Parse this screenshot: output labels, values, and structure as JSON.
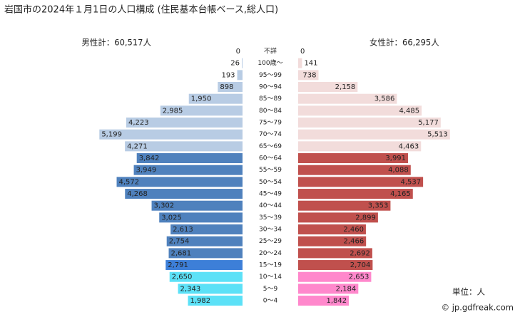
{
  "chart_data": {
    "type": "pyramid",
    "title": "岩国市の2024年１月1日の人口構成 (住民基本台帳ベース,総人口)",
    "unit": "単位：人",
    "source": "© jp.gdfreak.com",
    "categories": [
      "不詳",
      "100歳～",
      "95～99",
      "90～94",
      "85～89",
      "80～84",
      "75～79",
      "70～74",
      "65～69",
      "60～64",
      "55～59",
      "50～54",
      "45～49",
      "40～44",
      "35～39",
      "30～34",
      "25～29",
      "20～24",
      "15～19",
      "10～14",
      "5～9",
      "0～4"
    ],
    "series": [
      {
        "name": "男性計：60,517人",
        "side": "left",
        "values": [
          0,
          26,
          193,
          898,
          1950,
          2985,
          4223,
          5199,
          4271,
          3842,
          3949,
          4572,
          4268,
          3302,
          3025,
          2613,
          2754,
          2681,
          2791,
          2650,
          2343,
          1982
        ],
        "value_labels": [
          "0",
          "26",
          "193",
          "898",
          "1,950",
          "2,985",
          "4,223",
          "5,199",
          "4,271",
          "3,842",
          "3,949",
          "4,572",
          "4,268",
          "3,302",
          "3,025",
          "2,613",
          "2,754",
          "2,681",
          "2,791",
          "2,650",
          "2,343",
          "1,982"
        ],
        "colors": [
          "#b8cce4",
          "#b8cce4",
          "#b8cce4",
          "#b8cce4",
          "#b8cce4",
          "#b8cce4",
          "#b8cce4",
          "#b8cce4",
          "#b8cce4",
          "#4f81bd",
          "#4f81bd",
          "#4f81bd",
          "#4f81bd",
          "#4f81bd",
          "#4f81bd",
          "#4f81bd",
          "#4f81bd",
          "#4f81bd",
          "#3d7fd8",
          "#5ce1f7",
          "#5ce1f7",
          "#5ce1f7"
        ]
      },
      {
        "name": "女性計：66,295人",
        "side": "right",
        "values": [
          0,
          141,
          738,
          2158,
          3586,
          4485,
          5177,
          5513,
          4463,
          3991,
          4088,
          4537,
          4165,
          3353,
          2899,
          2460,
          2466,
          2692,
          2704,
          2653,
          2184,
          1842
        ],
        "value_labels": [
          "0",
          "141",
          "738",
          "2,158",
          "3,586",
          "4,485",
          "5,177",
          "5,513",
          "4,463",
          "3,991",
          "4,088",
          "4,537",
          "4,165",
          "3,353",
          "2,899",
          "2,460",
          "2,466",
          "2,692",
          "2,704",
          "2,653",
          "2,184",
          "1,842"
        ],
        "colors": [
          "#f2dcdb",
          "#f2dcdb",
          "#f2dcdb",
          "#f2dcdb",
          "#f2dcdb",
          "#f2dcdb",
          "#f2dcdb",
          "#f2dcdb",
          "#f2dcdb",
          "#c0504d",
          "#c0504d",
          "#c0504d",
          "#c0504d",
          "#c0504d",
          "#c0504d",
          "#c0504d",
          "#c0504d",
          "#c0504d",
          "#c0504d",
          "#ff88cc",
          "#ff88cc",
          "#ff88cc"
        ]
      }
    ]
  }
}
